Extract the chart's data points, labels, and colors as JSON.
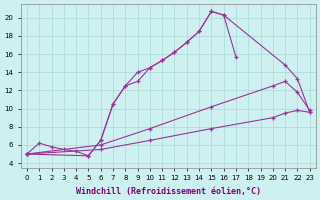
{
  "bg_color": "#cff0f0",
  "grid_color": "#a8d8d8",
  "line_color": "#993399",
  "xlabel": "Windchill (Refroidissement éolien,°C)",
  "xlim": [
    -0.5,
    23.5
  ],
  "ylim": [
    3.5,
    21.5
  ],
  "yticks": [
    4,
    6,
    8,
    10,
    12,
    14,
    16,
    18,
    20
  ],
  "xticks": [
    0,
    1,
    2,
    3,
    4,
    5,
    6,
    7,
    8,
    9,
    10,
    11,
    12,
    13,
    14,
    15,
    16,
    17,
    18,
    19,
    20,
    21,
    22,
    23
  ],
  "tick_fontsize": 5.0,
  "xlabel_fontsize": 6.0,
  "curve1_x": [
    0,
    1,
    2,
    3,
    4,
    5,
    6,
    7,
    8,
    9,
    10,
    11,
    12,
    13,
    14,
    15,
    16,
    17
  ],
  "curve1_y": [
    5.0,
    6.2,
    5.8,
    5.5,
    5.3,
    4.8,
    6.5,
    10.5,
    12.5,
    14.0,
    14.5,
    15.3,
    16.2,
    17.3,
    18.5,
    20.7,
    20.3,
    15.7
  ],
  "curve2_x": [
    0,
    5,
    6,
    7,
    8,
    9,
    10,
    11,
    12,
    13,
    14,
    15,
    16,
    21,
    22,
    23
  ],
  "curve2_y": [
    5.0,
    4.8,
    6.5,
    10.5,
    12.5,
    13.0,
    14.5,
    15.3,
    16.2,
    17.3,
    18.5,
    20.7,
    20.3,
    14.8,
    13.3,
    9.6
  ],
  "curve3_x": [
    0,
    6,
    10,
    15,
    20,
    21,
    22,
    23
  ],
  "curve3_y": [
    5.0,
    6.0,
    7.8,
    10.2,
    12.5,
    13.0,
    11.8,
    9.8
  ],
  "curve4_x": [
    0,
    6,
    10,
    15,
    20,
    21,
    22,
    23
  ],
  "curve4_y": [
    5.0,
    5.5,
    6.5,
    7.8,
    9.0,
    9.5,
    9.8,
    9.6
  ]
}
